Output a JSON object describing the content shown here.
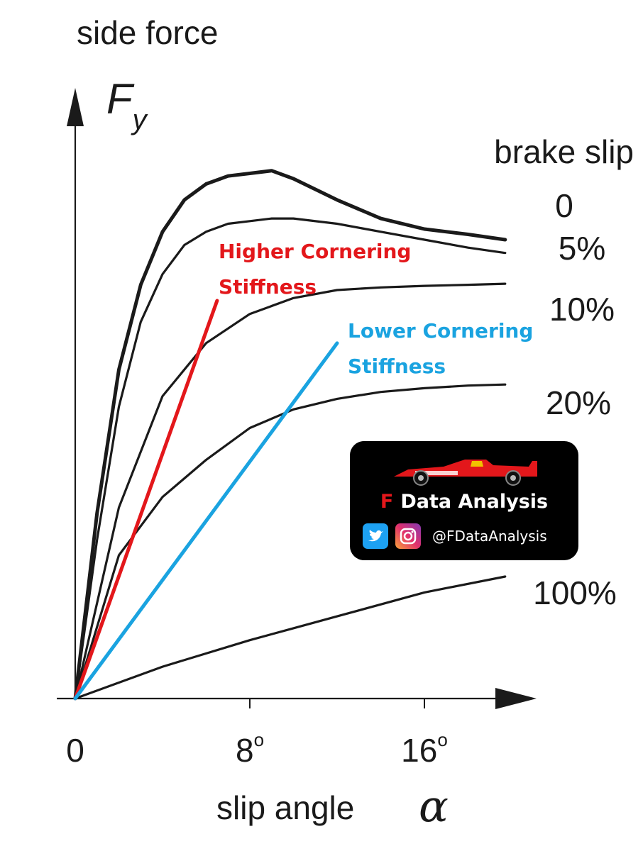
{
  "chart_data": {
    "type": "line",
    "title": "",
    "ylabel": "side force",
    "ylabel_symbol": "F",
    "ylabel_subscript": "y",
    "xlabel": "slip angle",
    "xlabel_symbol": "α",
    "xlim": [
      0,
      21
    ],
    "ylim": [
      0,
      100
    ],
    "x_ticks": [
      0,
      8,
      16
    ],
    "x_tick_labels": [
      "0",
      "8",
      "16"
    ],
    "x_tick_suffix": "o",
    "legend_title": "brake slip",
    "series": [
      {
        "name": "0",
        "weight": "bold",
        "x": [
          0,
          1,
          2,
          3,
          4,
          5,
          6,
          7,
          8,
          9,
          10,
          12,
          14,
          16,
          18,
          19.7
        ],
        "y": [
          0,
          35,
          62,
          78,
          88,
          94,
          97,
          98.5,
          99,
          99.5,
          98,
          94,
          90.5,
          88.5,
          87.5,
          86.5
        ]
      },
      {
        "name": "5%",
        "x": [
          0,
          1,
          2,
          3,
          4,
          5,
          6,
          7,
          8,
          9,
          10,
          12,
          14,
          16,
          18,
          19.7
        ],
        "y": [
          0,
          30,
          55,
          71,
          80,
          85.5,
          88,
          89.5,
          90,
          90.5,
          90.5,
          89.5,
          88,
          86.5,
          85,
          84
        ]
      },
      {
        "name": "10%",
        "x": [
          0,
          2,
          4,
          6,
          8,
          10,
          12,
          14,
          16,
          18,
          19.7
        ],
        "y": [
          0,
          36,
          57,
          67,
          72.5,
          75.5,
          77,
          77.5,
          77.8,
          78,
          78.2
        ]
      },
      {
        "name": "20%",
        "x": [
          0,
          2,
          4,
          6,
          8,
          10,
          12,
          14,
          16,
          18,
          19.7
        ],
        "y": [
          0,
          27,
          38,
          45,
          51,
          54.5,
          56.5,
          57.8,
          58.5,
          59,
          59.2
        ]
      },
      {
        "name": "100%",
        "x": [
          0,
          4,
          8,
          12,
          16,
          19.7
        ],
        "y": [
          0,
          6,
          11,
          15.5,
          20,
          23
        ]
      }
    ],
    "annotations": [
      {
        "text": [
          "Higher Cornering",
          "Stiffness"
        ],
        "color": "#e3171b",
        "line_x": [
          0,
          6.5
        ],
        "line_y": [
          0,
          75
        ]
      },
      {
        "text": [
          "Lower Cornering",
          "Stiffness"
        ],
        "color": "#1aa3e0",
        "line_x": [
          0,
          12
        ],
        "line_y": [
          0,
          67
        ]
      }
    ]
  },
  "badge": {
    "f_letter": "F",
    "brand": "Data Analysis",
    "handle": "@FDataAnalysis",
    "icons": [
      "twitter-icon",
      "instagram-icon"
    ],
    "car_color": "#e3171b",
    "background": "#000000"
  }
}
